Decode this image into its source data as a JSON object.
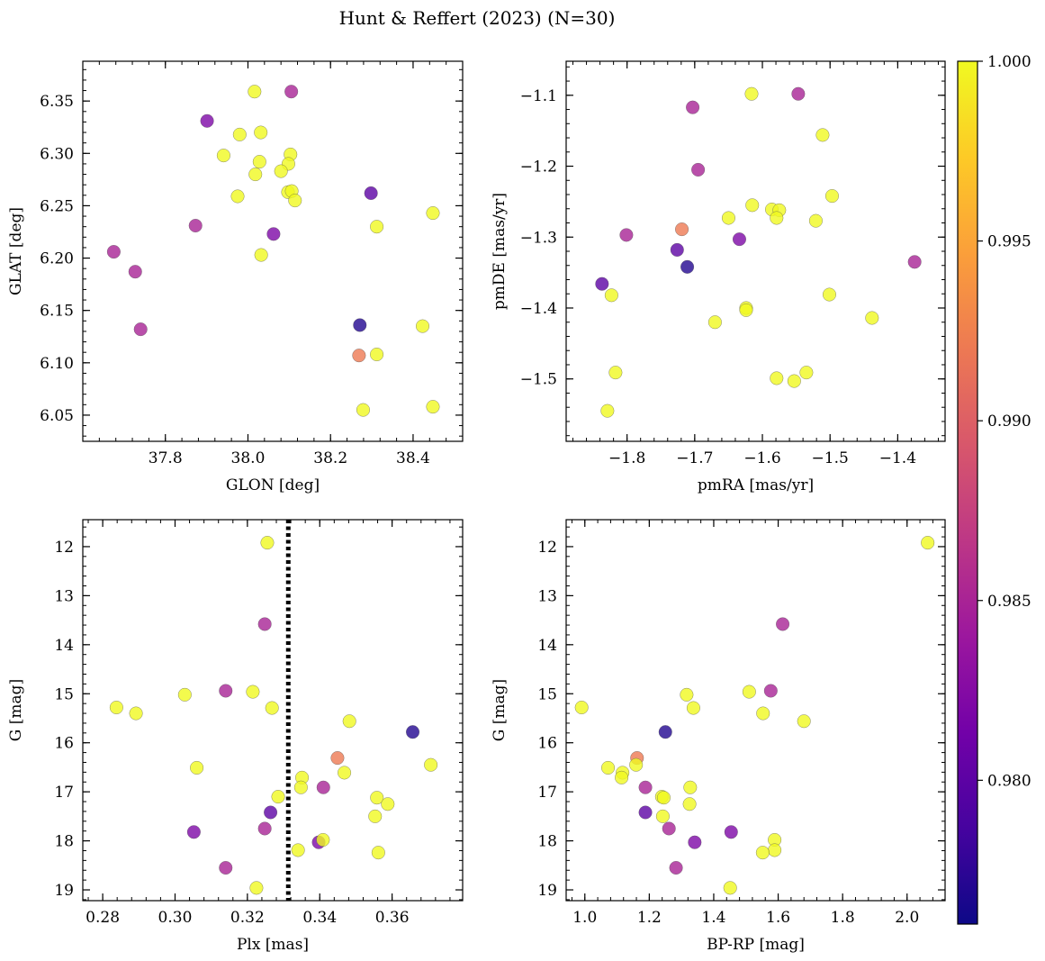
{
  "figure_title": "Hunt & Reffert (2023) (N=30)",
  "colors": {
    "colormap": "plasma",
    "plasma_stops": [
      "#0d0887",
      "#46039f",
      "#7201a8",
      "#9c179e",
      "#bd3786",
      "#d8576b",
      "#ed7953",
      "#fb9f3a",
      "#fdca26",
      "#f0f921"
    ],
    "point_alpha": 0.8,
    "point_edge": "#555555",
    "vline_color": "#000000"
  },
  "colorbar": {
    "vmin": 0.976,
    "vmax": 1.0,
    "ticks": [
      0.98,
      0.985,
      0.99,
      0.995,
      1.0
    ],
    "tick_labels": [
      "0.980",
      "0.985",
      "0.990",
      "0.995",
      "1.000"
    ]
  },
  "chart_data": [
    {
      "type": "scatter",
      "id": "glon-glat",
      "xlabel": "GLON [deg]",
      "ylabel": "GLAT [deg]",
      "xlim": [
        37.6,
        38.52
      ],
      "ylim": [
        6.025,
        6.388
      ],
      "y_inverted": false,
      "xticks": [
        37.8,
        38.0,
        38.2,
        38.4
      ],
      "xtick_labels": [
        "37.8",
        "38.0",
        "38.2",
        "38.4"
      ],
      "yticks": [
        6.05,
        6.1,
        6.15,
        6.2,
        6.25,
        6.3,
        6.35
      ],
      "ytick_labels": [
        "6.05",
        "6.10",
        "6.15",
        "6.20",
        "6.25",
        "6.30",
        "6.35"
      ],
      "points": [
        {
          "x": 38.016,
          "y": 6.359,
          "c": 1.0
        },
        {
          "x": 38.105,
          "y": 6.359,
          "c": 0.985
        },
        {
          "x": 37.901,
          "y": 6.331,
          "c": 0.982
        },
        {
          "x": 37.98,
          "y": 6.318,
          "c": 1.0
        },
        {
          "x": 38.031,
          "y": 6.32,
          "c": 1.0
        },
        {
          "x": 37.941,
          "y": 6.298,
          "c": 1.0
        },
        {
          "x": 38.103,
          "y": 6.299,
          "c": 1.0
        },
        {
          "x": 38.028,
          "y": 6.292,
          "c": 1.0
        },
        {
          "x": 38.098,
          "y": 6.29,
          "c": 1.0
        },
        {
          "x": 38.08,
          "y": 6.283,
          "c": 1.0
        },
        {
          "x": 38.018,
          "y": 6.28,
          "c": 1.0
        },
        {
          "x": 38.097,
          "y": 6.263,
          "c": 1.0
        },
        {
          "x": 38.106,
          "y": 6.264,
          "c": 1.0
        },
        {
          "x": 37.975,
          "y": 6.259,
          "c": 1.0
        },
        {
          "x": 38.114,
          "y": 6.255,
          "c": 1.0
        },
        {
          "x": 38.298,
          "y": 6.262,
          "c": 0.98
        },
        {
          "x": 38.448,
          "y": 6.243,
          "c": 1.0
        },
        {
          "x": 37.873,
          "y": 6.231,
          "c": 0.985
        },
        {
          "x": 38.312,
          "y": 6.23,
          "c": 1.0
        },
        {
          "x": 38.062,
          "y": 6.223,
          "c": 0.982
        },
        {
          "x": 37.675,
          "y": 6.206,
          "c": 0.985
        },
        {
          "x": 38.032,
          "y": 6.203,
          "c": 1.0
        },
        {
          "x": 37.727,
          "y": 6.187,
          "c": 0.985
        },
        {
          "x": 38.271,
          "y": 6.136,
          "c": 0.977
        },
        {
          "x": 38.423,
          "y": 6.135,
          "c": 1.0
        },
        {
          "x": 37.74,
          "y": 6.132,
          "c": 0.985
        },
        {
          "x": 38.312,
          "y": 6.108,
          "c": 1.0
        },
        {
          "x": 38.269,
          "y": 6.107,
          "c": 0.992
        },
        {
          "x": 38.448,
          "y": 6.058,
          "c": 1.0
        },
        {
          "x": 38.279,
          "y": 6.055,
          "c": 1.0
        }
      ]
    },
    {
      "type": "scatter",
      "id": "pmra-pmde",
      "xlabel": "pmRA [mas/yr]",
      "ylabel": "pmDE [mas/yr]",
      "xlim": [
        -1.89,
        -1.33
      ],
      "ylim": [
        -1.588,
        -1.052
      ],
      "y_inverted": false,
      "xticks": [
        -1.8,
        -1.7,
        -1.6,
        -1.5,
        -1.4
      ],
      "xtick_labels": [
        "−1.8",
        "−1.7",
        "−1.6",
        "−1.5",
        "−1.4"
      ],
      "yticks": [
        -1.5,
        -1.4,
        -1.3,
        -1.2,
        -1.1
      ],
      "ytick_labels": [
        "−1.5",
        "−1.4",
        "−1.3",
        "−1.2",
        "−1.1"
      ],
      "points": [
        {
          "x": -1.616,
          "y": -1.098,
          "c": 1.0
        },
        {
          "x": -1.547,
          "y": -1.098,
          "c": 0.985
        },
        {
          "x": -1.703,
          "y": -1.117,
          "c": 0.985
        },
        {
          "x": -1.511,
          "y": -1.156,
          "c": 1.0
        },
        {
          "x": -1.695,
          "y": -1.205,
          "c": 0.985
        },
        {
          "x": -1.497,
          "y": -1.242,
          "c": 1.0
        },
        {
          "x": -1.615,
          "y": -1.255,
          "c": 1.0
        },
        {
          "x": -1.586,
          "y": -1.261,
          "c": 1.0
        },
        {
          "x": -1.575,
          "y": -1.262,
          "c": 1.0
        },
        {
          "x": -1.65,
          "y": -1.273,
          "c": 1.0
        },
        {
          "x": -1.579,
          "y": -1.273,
          "c": 1.0
        },
        {
          "x": -1.521,
          "y": -1.277,
          "c": 1.0
        },
        {
          "x": -1.719,
          "y": -1.289,
          "c": 0.992
        },
        {
          "x": -1.801,
          "y": -1.297,
          "c": 0.985
        },
        {
          "x": -1.634,
          "y": -1.303,
          "c": 0.982
        },
        {
          "x": -1.726,
          "y": -1.318,
          "c": 0.98
        },
        {
          "x": -1.375,
          "y": -1.335,
          "c": 0.985
        },
        {
          "x": -1.711,
          "y": -1.342,
          "c": 0.977
        },
        {
          "x": -1.837,
          "y": -1.366,
          "c": 0.98
        },
        {
          "x": -1.823,
          "y": -1.382,
          "c": 1.0
        },
        {
          "x": -1.501,
          "y": -1.381,
          "c": 1.0
        },
        {
          "x": -1.624,
          "y": -1.4,
          "c": 1.0
        },
        {
          "x": -1.624,
          "y": -1.403,
          "c": 1.0
        },
        {
          "x": -1.438,
          "y": -1.414,
          "c": 1.0
        },
        {
          "x": -1.67,
          "y": -1.42,
          "c": 1.0
        },
        {
          "x": -1.817,
          "y": -1.491,
          "c": 1.0
        },
        {
          "x": -1.535,
          "y": -1.491,
          "c": 1.0
        },
        {
          "x": -1.579,
          "y": -1.499,
          "c": 1.0
        },
        {
          "x": -1.553,
          "y": -1.503,
          "c": 1.0
        },
        {
          "x": -1.829,
          "y": -1.545,
          "c": 1.0
        }
      ]
    },
    {
      "type": "scatter",
      "id": "plx-g",
      "xlabel": "Plx [mas]",
      "ylabel": "G [mag]",
      "xlim": [
        0.2745,
        0.3795
      ],
      "ylim": [
        11.45,
        19.22
      ],
      "y_inverted": true,
      "xticks": [
        0.28,
        0.3,
        0.32,
        0.34,
        0.36
      ],
      "xtick_labels": [
        "0.28",
        "0.30",
        "0.32",
        "0.34",
        "0.36"
      ],
      "yticks": [
        12,
        13,
        14,
        15,
        16,
        17,
        18,
        19
      ],
      "ytick_labels": [
        "12",
        "13",
        "14",
        "15",
        "16",
        "17",
        "18",
        "19"
      ],
      "vline": {
        "x": 0.3313,
        "style": "dotted"
      },
      "points": [
        {
          "x": 0.3255,
          "y": 11.92,
          "c": 1.0
        },
        {
          "x": 0.3248,
          "y": 13.58,
          "c": 0.985
        },
        {
          "x": 0.3027,
          "y": 15.02,
          "c": 1.0
        },
        {
          "x": 0.314,
          "y": 14.94,
          "c": 0.985
        },
        {
          "x": 0.3215,
          "y": 14.96,
          "c": 1.0
        },
        {
          "x": 0.2838,
          "y": 15.28,
          "c": 1.0
        },
        {
          "x": 0.2892,
          "y": 15.4,
          "c": 1.0
        },
        {
          "x": 0.3268,
          "y": 15.29,
          "c": 1.0
        },
        {
          "x": 0.3482,
          "y": 15.56,
          "c": 1.0
        },
        {
          "x": 0.3657,
          "y": 15.78,
          "c": 0.977
        },
        {
          "x": 0.306,
          "y": 16.51,
          "c": 1.0
        },
        {
          "x": 0.3449,
          "y": 16.31,
          "c": 0.992
        },
        {
          "x": 0.3707,
          "y": 16.45,
          "c": 1.0
        },
        {
          "x": 0.3468,
          "y": 16.61,
          "c": 1.0
        },
        {
          "x": 0.3351,
          "y": 16.71,
          "c": 1.0
        },
        {
          "x": 0.3348,
          "y": 16.91,
          "c": 1.0
        },
        {
          "x": 0.341,
          "y": 16.91,
          "c": 0.985
        },
        {
          "x": 0.3285,
          "y": 17.1,
          "c": 1.0
        },
        {
          "x": 0.3558,
          "y": 17.12,
          "c": 1.0
        },
        {
          "x": 0.3588,
          "y": 17.25,
          "c": 1.0
        },
        {
          "x": 0.3264,
          "y": 17.42,
          "c": 0.98
        },
        {
          "x": 0.3553,
          "y": 17.5,
          "c": 1.0
        },
        {
          "x": 0.3248,
          "y": 17.75,
          "c": 0.985
        },
        {
          "x": 0.3052,
          "y": 17.82,
          "c": 0.982
        },
        {
          "x": 0.3397,
          "y": 18.03,
          "c": 0.982
        },
        {
          "x": 0.3409,
          "y": 17.98,
          "c": 1.0
        },
        {
          "x": 0.334,
          "y": 18.19,
          "c": 1.0
        },
        {
          "x": 0.3562,
          "y": 18.24,
          "c": 1.0
        },
        {
          "x": 0.314,
          "y": 18.55,
          "c": 0.985
        },
        {
          "x": 0.3225,
          "y": 18.96,
          "c": 1.0
        }
      ]
    },
    {
      "type": "scatter",
      "id": "bprp-g",
      "xlabel": "BP-RP [mag]",
      "ylabel": "G [mag]",
      "xlim": [
        0.942,
        2.118
      ],
      "ylim": [
        11.45,
        19.22
      ],
      "y_inverted": true,
      "xticks": [
        1.0,
        1.2,
        1.4,
        1.6,
        1.8,
        2.0
      ],
      "xtick_labels": [
        "1.0",
        "1.2",
        "1.4",
        "1.6",
        "1.8",
        "2.0"
      ],
      "yticks": [
        12,
        13,
        14,
        15,
        16,
        17,
        18,
        19
      ],
      "ytick_labels": [
        "12",
        "13",
        "14",
        "15",
        "16",
        "17",
        "18",
        "19"
      ],
      "points": [
        {
          "x": 2.064,
          "y": 11.92,
          "c": 1.0
        },
        {
          "x": 1.614,
          "y": 13.58,
          "c": 0.985
        },
        {
          "x": 1.316,
          "y": 15.02,
          "c": 1.0
        },
        {
          "x": 1.51,
          "y": 14.96,
          "c": 1.0
        },
        {
          "x": 1.577,
          "y": 14.94,
          "c": 0.985
        },
        {
          "x": 0.99,
          "y": 15.28,
          "c": 1.0
        },
        {
          "x": 1.337,
          "y": 15.29,
          "c": 1.0
        },
        {
          "x": 1.553,
          "y": 15.4,
          "c": 1.0
        },
        {
          "x": 1.68,
          "y": 15.56,
          "c": 1.0
        },
        {
          "x": 1.25,
          "y": 15.78,
          "c": 0.977
        },
        {
          "x": 1.162,
          "y": 16.31,
          "c": 0.992
        },
        {
          "x": 1.159,
          "y": 16.45,
          "c": 1.0
        },
        {
          "x": 1.072,
          "y": 16.51,
          "c": 1.0
        },
        {
          "x": 1.117,
          "y": 16.61,
          "c": 1.0
        },
        {
          "x": 1.114,
          "y": 16.71,
          "c": 1.0
        },
        {
          "x": 1.188,
          "y": 16.91,
          "c": 0.985
        },
        {
          "x": 1.327,
          "y": 16.91,
          "c": 1.0
        },
        {
          "x": 1.239,
          "y": 17.1,
          "c": 1.0
        },
        {
          "x": 1.245,
          "y": 17.12,
          "c": 1.0
        },
        {
          "x": 1.325,
          "y": 17.25,
          "c": 1.0
        },
        {
          "x": 1.188,
          "y": 17.42,
          "c": 0.98
        },
        {
          "x": 1.242,
          "y": 17.5,
          "c": 1.0
        },
        {
          "x": 1.261,
          "y": 17.75,
          "c": 0.985
        },
        {
          "x": 1.454,
          "y": 17.82,
          "c": 0.982
        },
        {
          "x": 1.589,
          "y": 17.98,
          "c": 1.0
        },
        {
          "x": 1.341,
          "y": 18.03,
          "c": 0.982
        },
        {
          "x": 1.589,
          "y": 18.19,
          "c": 1.0
        },
        {
          "x": 1.552,
          "y": 18.24,
          "c": 1.0
        },
        {
          "x": 1.283,
          "y": 18.55,
          "c": 0.985
        },
        {
          "x": 1.451,
          "y": 18.96,
          "c": 1.0
        }
      ]
    }
  ]
}
